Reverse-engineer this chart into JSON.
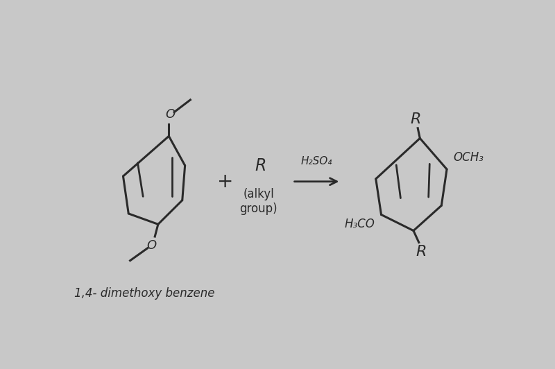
{
  "bg_color": "#c8c8c8",
  "line_color": "#2a2a2a",
  "text_color": "#1a1a1a",
  "label": "1,4- dimethoxy benzene",
  "reagent": "H₂SO₄",
  "plus": "+",
  "R_label": "R",
  "alkyl_label": "(alkyl\ngroup)",
  "OCH3_label": "OCH₃",
  "H3CO_label": "H₃CO",
  "O_label": "O",
  "figsize": [
    8.0,
    5.32
  ],
  "dpi": 100
}
